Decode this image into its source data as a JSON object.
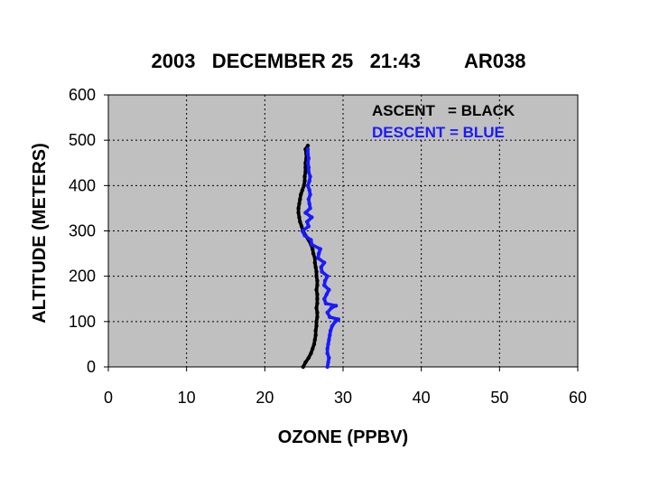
{
  "chart_data": {
    "type": "scatter",
    "title": "2003   DECEMBER 25   21:43        AR038",
    "xlabel": "OZONE (PPBV)",
    "ylabel": "ALTITUDE (METERS)",
    "xlim": [
      0,
      60
    ],
    "ylim": [
      0,
      600
    ],
    "x_ticks": [
      "0",
      "10",
      "20",
      "30",
      "40",
      "50",
      "60"
    ],
    "y_ticks": [
      "0",
      "100",
      "200",
      "300",
      "400",
      "500",
      "600"
    ],
    "grid": true,
    "legend_position": "top-right",
    "legend": [
      {
        "label": "ASCENT   = BLACK",
        "color": "#000000"
      },
      {
        "label": "DESCENT = BLUE",
        "color": "#1a1aff"
      }
    ],
    "series": [
      {
        "color": "#000000",
        "points": [
          [
            24.9,
            0
          ],
          [
            25.2,
            10
          ],
          [
            25.6,
            20
          ],
          [
            25.9,
            30
          ],
          [
            26.1,
            40
          ],
          [
            26.3,
            50
          ],
          [
            26.4,
            60
          ],
          [
            26.5,
            70
          ],
          [
            26.5,
            80
          ],
          [
            26.6,
            90
          ],
          [
            26.6,
            100
          ],
          [
            26.7,
            110
          ],
          [
            26.7,
            120
          ],
          [
            26.6,
            130
          ],
          [
            26.7,
            140
          ],
          [
            26.7,
            150
          ],
          [
            26.7,
            160
          ],
          [
            26.6,
            170
          ],
          [
            26.7,
            180
          ],
          [
            26.7,
            190
          ],
          [
            26.6,
            200
          ],
          [
            26.6,
            210
          ],
          [
            26.5,
            220
          ],
          [
            26.4,
            230
          ],
          [
            26.4,
            240
          ],
          [
            26.2,
            250
          ],
          [
            26.1,
            260
          ],
          [
            25.9,
            270
          ],
          [
            25.6,
            280
          ],
          [
            25.2,
            290
          ],
          [
            24.9,
            300
          ],
          [
            24.7,
            310
          ],
          [
            24.5,
            320
          ],
          [
            24.4,
            330
          ],
          [
            24.3,
            340
          ],
          [
            24.3,
            350
          ],
          [
            24.4,
            360
          ],
          [
            24.5,
            370
          ],
          [
            24.6,
            380
          ],
          [
            24.8,
            390
          ],
          [
            25.0,
            400
          ],
          [
            25.1,
            410
          ],
          [
            25.1,
            420
          ],
          [
            25.2,
            430
          ],
          [
            25.2,
            440
          ],
          [
            25.2,
            450
          ],
          [
            25.3,
            460
          ],
          [
            25.3,
            470
          ],
          [
            25.2,
            480
          ],
          [
            25.5,
            488
          ]
        ]
      },
      {
        "color": "#1a1aff",
        "points": [
          [
            28.0,
            0
          ],
          [
            28.1,
            10
          ],
          [
            28.2,
            20
          ],
          [
            28.0,
            30
          ],
          [
            28.0,
            40
          ],
          [
            28.1,
            50
          ],
          [
            28.2,
            60
          ],
          [
            28.3,
            70
          ],
          [
            28.4,
            80
          ],
          [
            28.6,
            90
          ],
          [
            29.0,
            100
          ],
          [
            29.4,
            105
          ],
          [
            28.3,
            110
          ],
          [
            28.0,
            120
          ],
          [
            28.5,
            130
          ],
          [
            29.1,
            135
          ],
          [
            27.8,
            140
          ],
          [
            27.6,
            150
          ],
          [
            27.9,
            160
          ],
          [
            28.2,
            170
          ],
          [
            27.6,
            180
          ],
          [
            27.7,
            190
          ],
          [
            28.0,
            200
          ],
          [
            27.3,
            210
          ],
          [
            27.2,
            220
          ],
          [
            27.6,
            230
          ],
          [
            26.8,
            240
          ],
          [
            26.9,
            250
          ],
          [
            27.1,
            260
          ],
          [
            26.0,
            270
          ],
          [
            25.9,
            280
          ],
          [
            25.1,
            290
          ],
          [
            24.8,
            300
          ],
          [
            25.6,
            310
          ],
          [
            25.4,
            320
          ],
          [
            26.0,
            330
          ],
          [
            25.2,
            340
          ],
          [
            25.8,
            350
          ],
          [
            25.7,
            360
          ],
          [
            25.6,
            370
          ],
          [
            25.8,
            380
          ],
          [
            25.7,
            390
          ],
          [
            25.5,
            400
          ],
          [
            25.7,
            410
          ],
          [
            25.8,
            420
          ],
          [
            25.6,
            430
          ],
          [
            25.6,
            440
          ],
          [
            25.5,
            450
          ],
          [
            25.6,
            460
          ],
          [
            25.5,
            470
          ],
          [
            25.5,
            480
          ]
        ]
      }
    ]
  }
}
